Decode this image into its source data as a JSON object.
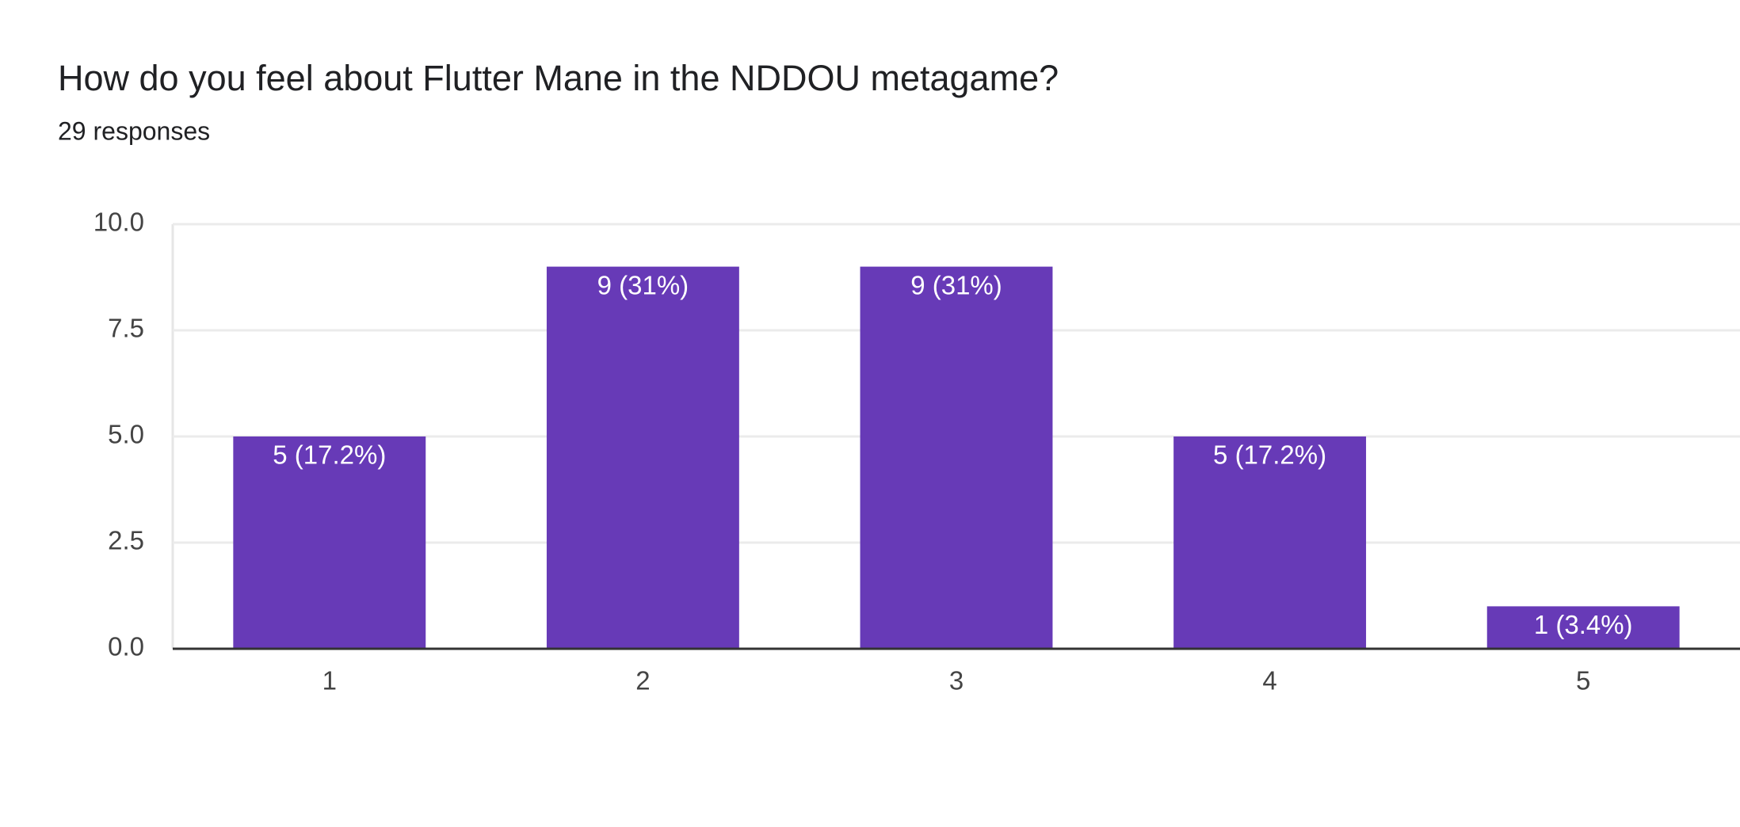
{
  "chart_data": {
    "type": "bar",
    "title": "How do you feel about Flutter Mane in the NDDOU metagame?",
    "subtitle": "29 responses",
    "categories": [
      "1",
      "2",
      "3",
      "4",
      "5"
    ],
    "values": [
      5,
      9,
      9,
      5,
      1
    ],
    "value_labels": [
      "5 (17.2%)",
      "9 (31%)",
      "9 (31%)",
      "5 (17.2%)",
      "1 (3.4%)"
    ],
    "color": "#673ab7",
    "ylim": [
      0,
      10
    ],
    "yticks": [
      {
        "value": 0,
        "label": "0.0"
      },
      2.5,
      {
        "value": 5,
        "label": "5.0"
      },
      7.5,
      {
        "value": 10,
        "label": "10.0"
      }
    ],
    "grid": true
  }
}
